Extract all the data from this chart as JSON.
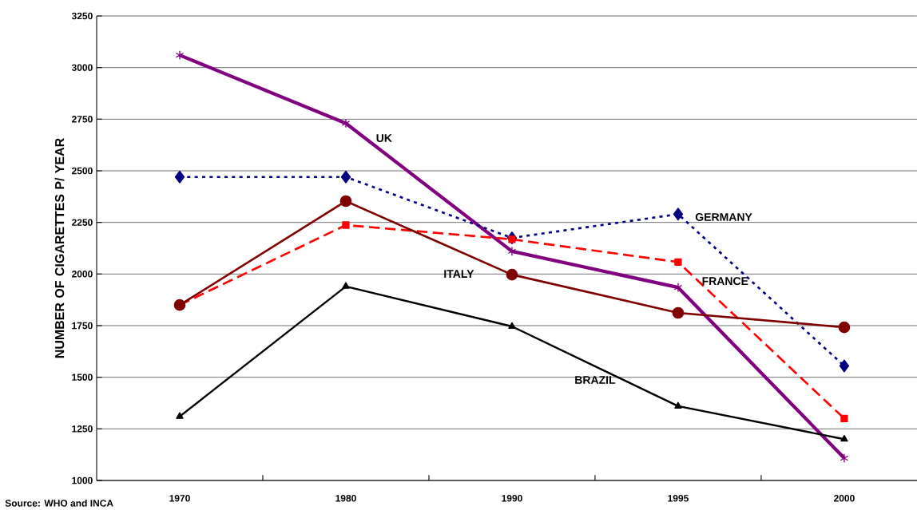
{
  "chart_data": {
    "type": "line",
    "ylabel": "NUMBER OF CIGARETTES P/ YEAR",
    "annotations": [
      "Source: WHO and INCA"
    ],
    "categories": [
      "1970",
      "1980",
      "1990",
      "1995",
      "2000"
    ],
    "ylim": [
      1000,
      3250
    ],
    "yticks": [
      1000,
      1250,
      1500,
      1750,
      2000,
      2250,
      2500,
      2750,
      3000,
      3250
    ],
    "grid": "y",
    "legend": false,
    "series": [
      {
        "name": "UK",
        "color": "#800080",
        "marker": "cross",
        "line_style": "solid",
        "values": [
          3060,
          2730,
          2110,
          1935,
          1108
        ]
      },
      {
        "name": "GERMANY",
        "color": "#000080",
        "marker": "diamond",
        "line_style": "dotted",
        "values": [
          2470,
          2470,
          2175,
          2290,
          1555
        ]
      },
      {
        "name": "FRANCE",
        "color": "#ff0000",
        "marker": "square",
        "line_style": "dashed",
        "values": [
          1850,
          2237,
          2168,
          2058,
          1300
        ]
      },
      {
        "name": "ITALY",
        "color": "#800000",
        "marker": "circle",
        "line_style": "solid",
        "values": [
          1850,
          2353,
          1997,
          1812,
          1742
        ]
      },
      {
        "name": "BRAZIL",
        "color": "#000000",
        "marker": "triangle",
        "line_style": "solid",
        "values": [
          1310,
          1940,
          1746,
          1360,
          1200
        ]
      }
    ]
  }
}
